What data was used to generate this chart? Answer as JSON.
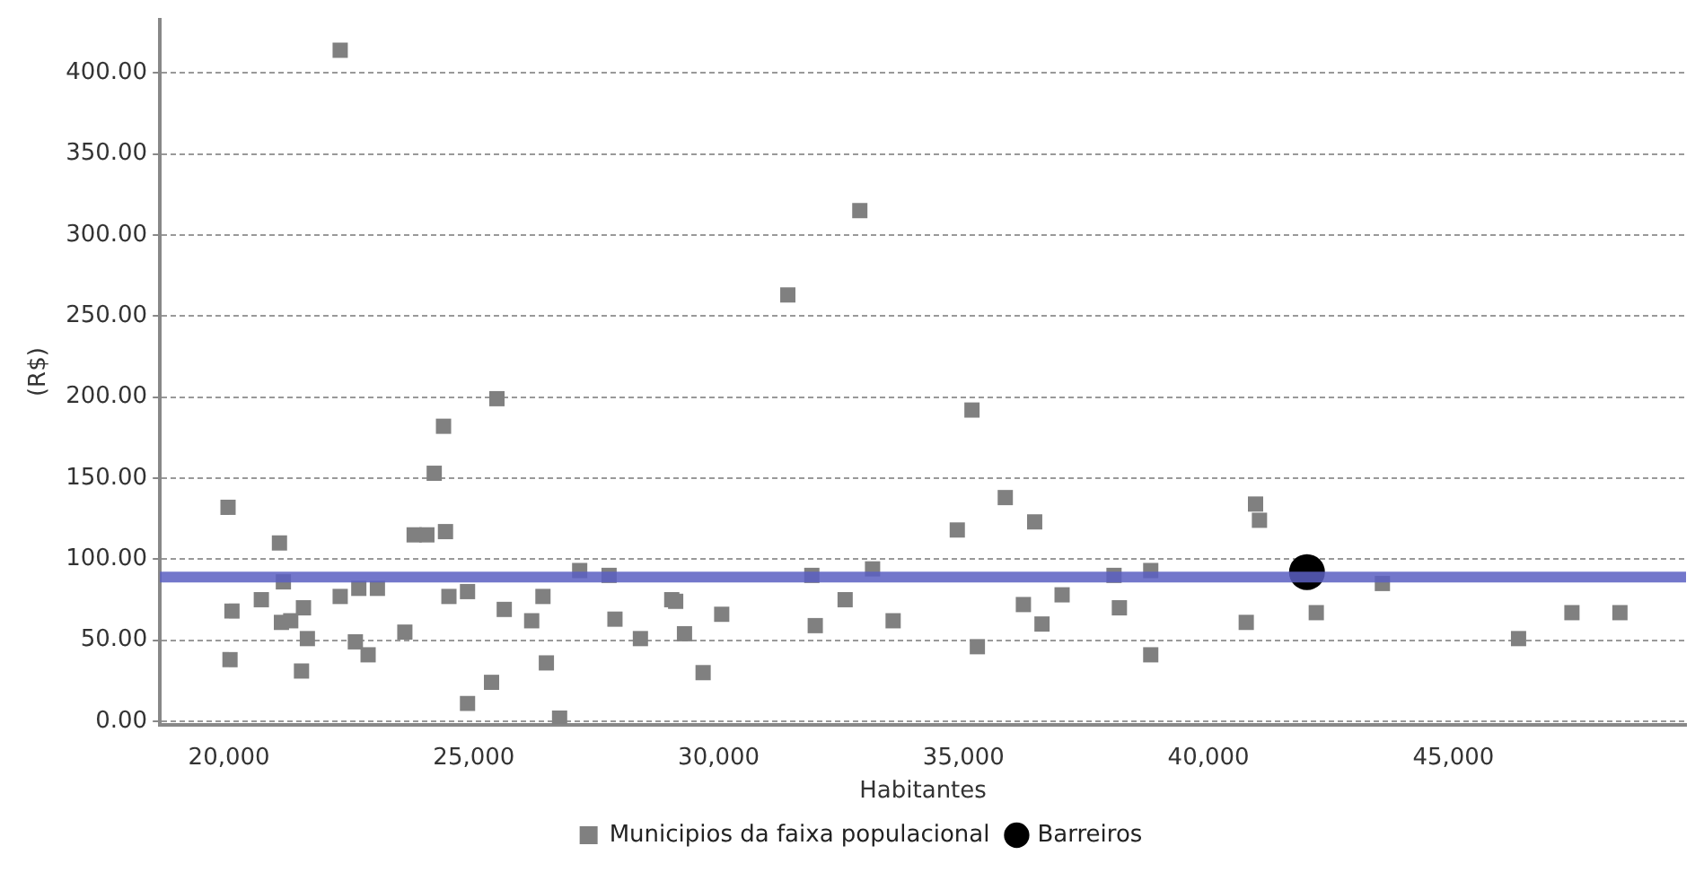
{
  "chart_data": {
    "type": "scatter",
    "xlabel": "Habitantes",
    "ylabel": "(R$)",
    "xlim": [
      18590,
      49750
    ],
    "ylim": [
      -2,
      433
    ],
    "xticks": [
      {
        "value": 20000,
        "label": "20,000"
      },
      {
        "value": 25000,
        "label": "25,000"
      },
      {
        "value": 30000,
        "label": "30,000"
      },
      {
        "value": 35000,
        "label": "35,000"
      },
      {
        "value": 40000,
        "label": "40,000"
      },
      {
        "value": 45000,
        "label": "45,000"
      }
    ],
    "yticks": [
      {
        "value": 0,
        "label": "0.00"
      },
      {
        "value": 50,
        "label": "50.00"
      },
      {
        "value": 100,
        "label": "100.00"
      },
      {
        "value": 150,
        "label": "150.00"
      },
      {
        "value": 200,
        "label": "200.00"
      },
      {
        "value": 250,
        "label": "250.00"
      },
      {
        "value": 300,
        "label": "300.00"
      },
      {
        "value": 350,
        "label": "350.00"
      },
      {
        "value": 400,
        "label": "400.00"
      }
    ],
    "grid": "y",
    "legend": "bottom",
    "series": [
      {
        "name": "Municipios da faixa populacional",
        "color": "#808080",
        "marker": "square",
        "x": [
          19980,
          20020,
          20060,
          20660,
          21030,
          21110,
          21070,
          21260,
          21520,
          21600,
          21480,
          22270,
          22650,
          23030,
          22580,
          22840,
          23590,
          23780,
          24040,
          24420,
          24190,
          24380,
          25470,
          24490,
          24870,
          24870,
          25360,
          25620,
          26180,
          26410,
          26480,
          26750,
          27160,
          27760,
          27880,
          28400,
          29040,
          29120,
          29300,
          29680,
          22270,
          32880,
          31410,
          35170,
          35850,
          34870,
          36450,
          30060,
          31900,
          31970,
          32580,
          33140,
          33560,
          35280,
          36220,
          36600,
          37010,
          38070,
          38180,
          38820,
          38820,
          40960,
          41040,
          40770,
          42200,
          43550,
          46330,
          47420,
          48400
        ],
        "values": [
          132,
          38,
          68,
          75,
          110,
          86,
          61,
          62,
          70,
          51,
          31,
          77,
          82,
          82,
          49,
          41,
          55,
          115,
          115,
          117,
          153,
          182,
          199,
          77,
          80,
          11,
          24,
          69,
          62,
          77,
          36,
          2,
          93,
          90,
          63,
          51,
          75,
          74,
          54,
          30,
          414,
          315,
          263,
          192,
          138,
          118,
          123,
          66,
          90,
          59,
          75,
          94,
          62,
          46,
          72,
          60,
          78,
          90,
          70,
          93,
          41,
          134,
          124,
          61,
          67,
          85,
          51,
          67,
          67
        ]
      },
      {
        "name": "Barreiros",
        "color": "#000000",
        "marker": "circle",
        "x": [
          42010
        ],
        "values": [
          92
        ]
      }
    ],
    "ref_lines": [
      {
        "axis": "y",
        "value": 89,
        "color": "#5a5fc2"
      }
    ]
  }
}
